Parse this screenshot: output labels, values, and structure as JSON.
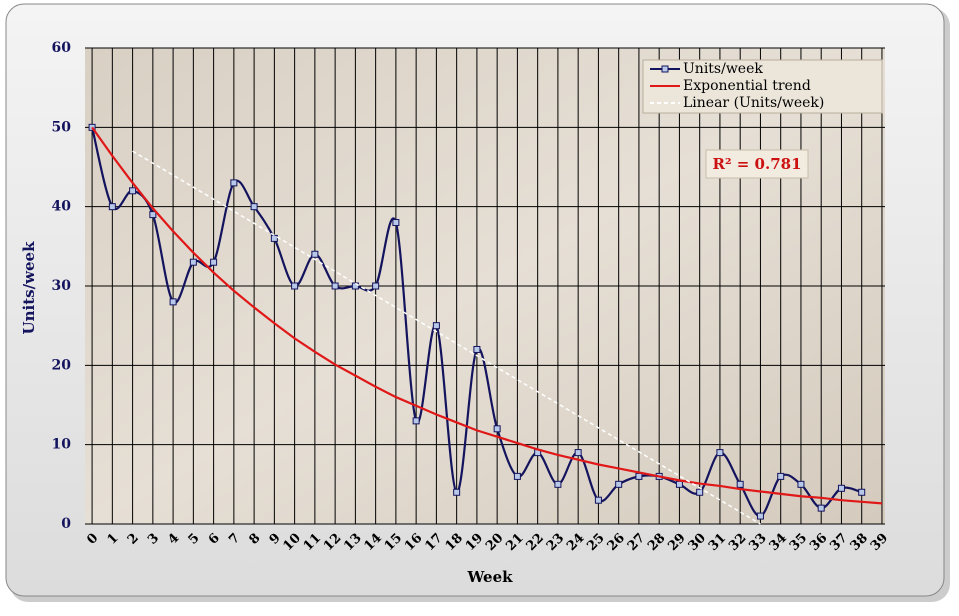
{
  "chart_data": {
    "type": "line",
    "x_label": "Week",
    "y_label": "Units/week",
    "annotation": "R² = 0.781",
    "legend": "top-right",
    "grid": true,
    "x": [
      0,
      1,
      2,
      3,
      4,
      5,
      6,
      7,
      8,
      9,
      10,
      11,
      12,
      13,
      14,
      15,
      16,
      17,
      18,
      19,
      20,
      21,
      22,
      23,
      24,
      25,
      26,
      27,
      28,
      29,
      30,
      31,
      32,
      33,
      34,
      35,
      36,
      37,
      38
    ],
    "xlim": [
      -0.35,
      39.15
    ],
    "xticks": [
      0,
      1,
      2,
      3,
      4,
      5,
      6,
      7,
      8,
      9,
      10,
      11,
      12,
      13,
      14,
      15,
      16,
      17,
      18,
      19,
      20,
      21,
      22,
      23,
      24,
      25,
      26,
      27,
      28,
      29,
      30,
      31,
      32,
      33,
      34,
      35,
      36,
      37,
      38,
      39
    ],
    "ylim": [
      0,
      60
    ],
    "yticks": [
      0,
      10,
      20,
      30,
      40,
      50,
      60
    ],
    "series": [
      {
        "name": "Units/week",
        "color": "#14145e",
        "smooth": true,
        "marker": "square",
        "values": [
          50,
          40,
          42,
          39,
          28,
          33,
          33,
          43,
          40,
          36,
          30,
          34,
          30,
          30,
          30,
          38,
          13,
          25,
          4,
          22,
          12,
          6,
          9,
          5,
          9,
          3,
          5,
          6,
          6,
          5,
          4,
          9,
          5,
          1,
          6,
          5,
          2,
          4.5,
          4
        ]
      },
      {
        "name": "Exponential trend",
        "color": "#e01818",
        "x": [
          0,
          1,
          2,
          3,
          4,
          5,
          6,
          7,
          8,
          9,
          10,
          11,
          12,
          13,
          14,
          15,
          16,
          17,
          18,
          19,
          20,
          21,
          22,
          23,
          24,
          25,
          26,
          27,
          28,
          29,
          30,
          31,
          32,
          33,
          34,
          35,
          36,
          37,
          38,
          39
        ],
        "values": [
          50,
          46.4,
          43.0,
          39.8,
          36.9,
          34.2,
          31.7,
          29.4,
          27.3,
          25.3,
          23.4,
          21.7,
          20.1,
          18.7,
          17.3,
          16.0,
          14.9,
          13.8,
          12.8,
          11.8,
          11.0,
          10.2,
          9.4,
          8.7,
          8.1,
          7.5,
          7.0,
          6.5,
          6.0,
          5.5,
          5.1,
          4.8,
          4.4,
          4.1,
          3.8,
          3.5,
          3.3,
          3.0,
          2.8,
          2.6
        ]
      },
      {
        "name": "Linear (Units/week)",
        "color": "#ffffff",
        "dashed": true,
        "x": [
          2,
          33
        ],
        "values": [
          47,
          0
        ]
      }
    ]
  }
}
